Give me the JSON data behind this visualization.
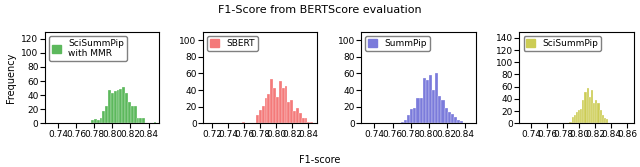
{
  "title": "F1-Score from BERTScore evaluation",
  "xlabel": "F1-score",
  "ylabel": "Frequency",
  "subplots": [
    {
      "label": "SciSummPip\nwith MMR",
      "color": "#5cb85c",
      "mean": 0.808,
      "std": 0.012,
      "xlim": [
        0.725,
        0.852
      ],
      "xticks": [
        0.74,
        0.76,
        0.78,
        0.8,
        0.82,
        0.84
      ],
      "ylim": [
        0,
        130
      ],
      "yticks": [
        0,
        20,
        40,
        60,
        80,
        100,
        120
      ],
      "n_samples": 500
    },
    {
      "label": "SBERT",
      "color": "#f47a7a",
      "mean": 0.804,
      "std": 0.016,
      "xlim": [
        0.708,
        0.852
      ],
      "xticks": [
        0.72,
        0.74,
        0.76,
        0.78,
        0.8,
        0.82,
        0.84
      ],
      "ylim": [
        0,
        110
      ],
      "yticks": [
        0,
        20,
        40,
        60,
        80,
        100
      ],
      "n_samples": 500
    },
    {
      "label": "SummPip",
      "color": "#7b7bdb",
      "mean": 0.803,
      "std": 0.013,
      "xlim": [
        0.725,
        0.852
      ],
      "xticks": [
        0.74,
        0.76,
        0.78,
        0.8,
        0.82,
        0.84
      ],
      "ylim": [
        0,
        110
      ],
      "yticks": [
        0,
        20,
        40,
        60,
        80,
        100
      ],
      "n_samples": 500
    },
    {
      "label": "SciSummPip",
      "color": "#cccc55",
      "mean": 0.812,
      "std": 0.01,
      "xlim": [
        0.725,
        0.868
      ],
      "xticks": [
        0.74,
        0.76,
        0.78,
        0.8,
        0.82,
        0.84,
        0.86
      ],
      "ylim": [
        0,
        150
      ],
      "yticks": [
        0,
        20,
        40,
        60,
        80,
        100,
        120,
        140
      ],
      "n_samples": 500
    }
  ],
  "bins": 25,
  "title_fontsize": 8,
  "axis_fontsize": 7,
  "tick_fontsize": 6.5,
  "legend_fontsize": 6.5
}
